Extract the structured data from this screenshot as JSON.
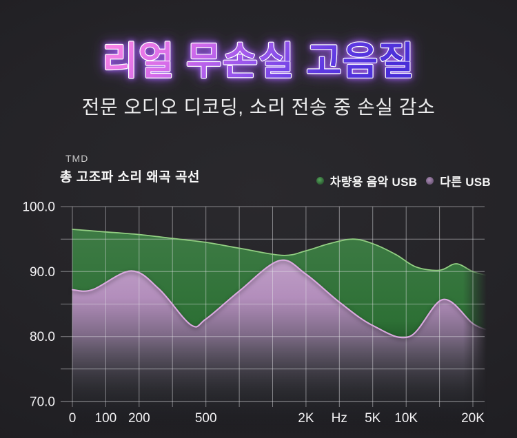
{
  "title": {
    "text": "리얼 무손실 고음질",
    "gradient": [
      "#ff84e4",
      "#d66ce9",
      "#9655ec",
      "#5d39e2",
      "#4a2ed8"
    ],
    "glow": "#9d5af2",
    "outline": "#ffffff"
  },
  "subtitle": {
    "text": "전문 오디오 디코딩, 소리 전송 중 손실 감소"
  },
  "chart": {
    "tag": "TMD",
    "title": "총 고조파 소리 왜곡 곡선",
    "legend_dots": [
      {
        "inner": "#55a75b",
        "outer": "#2c5a32"
      },
      {
        "inner": "#ab8cb6",
        "outer": "#6e5879"
      }
    ]
  },
  "colors": {
    "background": "#232226",
    "gridline": "rgba(228,228,232,0.5)",
    "axis_text": "#f3f2f4"
  },
  "chart_data": {
    "type": "area",
    "title": "총 고조파 소리 왜곡 곡선",
    "title_tag": "TMD",
    "x_axis_unit": "Hz",
    "ylim": [
      70,
      100
    ],
    "grid_slots": 13,
    "y_gridlines": [
      70,
      75,
      80,
      85,
      90,
      95,
      100
    ],
    "y_ticks": [
      {
        "value": 100,
        "label": "100.0"
      },
      {
        "value": 90,
        "label": "90.0"
      },
      {
        "value": 80,
        "label": "80.0"
      },
      {
        "value": 70,
        "label": "70.0"
      }
    ],
    "x_ticks": [
      {
        "slot": 0,
        "label": "0"
      },
      {
        "slot": 1,
        "label": "100"
      },
      {
        "slot": 2,
        "label": "200"
      },
      {
        "slot": 4,
        "label": "500"
      },
      {
        "slot": 7,
        "label": "2K"
      },
      {
        "slot": 8,
        "label": "Hz"
      },
      {
        "slot": 9,
        "label": "5K"
      },
      {
        "slot": 10,
        "label": "10K"
      },
      {
        "slot": 12,
        "label": "20K"
      }
    ],
    "series": [
      {
        "name": "차량용 음악 USB",
        "fill": "#2d7035",
        "line": "#93cf83",
        "points": [
          [
            0,
            96.5
          ],
          [
            1,
            96.1
          ],
          [
            2,
            95.7
          ],
          [
            3,
            95.1
          ],
          [
            4,
            94.5
          ],
          [
            5,
            93.6
          ],
          [
            6.3,
            92.5
          ],
          [
            7,
            93.2
          ],
          [
            7.7,
            94.3
          ],
          [
            8.4,
            95.0
          ],
          [
            9,
            94.3
          ],
          [
            9.7,
            92.6
          ],
          [
            10.3,
            90.7
          ],
          [
            11,
            90.2
          ],
          [
            11.5,
            91.2
          ],
          [
            12,
            90.0
          ],
          [
            12.45,
            89.4
          ]
        ]
      },
      {
        "name": "다른 USB",
        "fill": "#b98fc2",
        "line": "#dcabe1",
        "points": [
          [
            0,
            87.2
          ],
          [
            0.6,
            87.2
          ],
          [
            1.76,
            90.1
          ],
          [
            2.6,
            87.3
          ],
          [
            3.55,
            81.8
          ],
          [
            4,
            82.7
          ],
          [
            5,
            87.0
          ],
          [
            6.2,
            91.7
          ],
          [
            7,
            89.6
          ],
          [
            8,
            85.3
          ],
          [
            9,
            81.7
          ],
          [
            10.1,
            80.0
          ],
          [
            11.1,
            85.7
          ],
          [
            12,
            82.0
          ],
          [
            12.45,
            81.0
          ]
        ]
      }
    ],
    "layout": {
      "x0": 105,
      "dx": 48.416,
      "y_at_70": 583,
      "y_at_100": 300,
      "grid_left": 88,
      "grid_right": 703,
      "grid_bottom": 591,
      "baseline_y": 632,
      "tick_label_y": 613
    }
  }
}
